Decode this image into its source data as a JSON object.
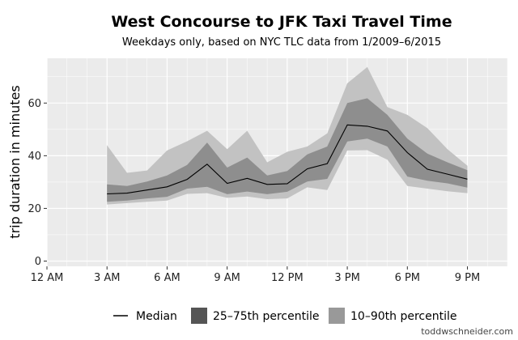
{
  "chart_data": {
    "type": "area",
    "title": "West Concourse to JFK Taxi Travel Time",
    "subtitle": "Weekdays only, based on NYC TLC data from 1/2009–6/2015",
    "xlabel": "",
    "ylabel": "trip duration in minutes",
    "x_tick_labels": [
      "12 AM",
      "3 AM",
      "6 AM",
      "9 AM",
      "12 PM",
      "3 PM",
      "6 PM",
      "9 PM"
    ],
    "x_ticks_hours": [
      0,
      3,
      6,
      9,
      12,
      15,
      18,
      21
    ],
    "xlim": [
      0,
      23
    ],
    "y_ticks": [
      0,
      20,
      40,
      60
    ],
    "ylim": [
      -2,
      77
    ],
    "grid": true,
    "legend_position": "bottom",
    "hours": [
      3,
      4,
      5,
      6,
      7,
      8,
      9,
      10,
      11,
      12,
      13,
      14,
      15,
      16,
      17,
      18,
      19,
      20,
      21
    ],
    "series": [
      {
        "name": "Median",
        "kind": "line",
        "values": [
          25.5,
          25.8,
          27,
          28.2,
          31,
          36.8,
          29.5,
          31.4,
          29.1,
          29.4,
          35,
          37,
          51.7,
          51.2,
          49.4,
          41.2,
          34.9,
          33,
          31.1
        ]
      },
      {
        "name": "25–75th percentile",
        "kind": "band",
        "lower": [
          22.5,
          23,
          23.8,
          24.4,
          27.5,
          28.2,
          25.4,
          26.4,
          25.4,
          26.3,
          30.2,
          31.2,
          45.4,
          46.5,
          43.5,
          32.1,
          30.5,
          29.5,
          27.9
        ],
        "upper": [
          29.1,
          28.5,
          30.2,
          32.5,
          36.5,
          45,
          35.5,
          39.3,
          32.5,
          34.2,
          40.5,
          43.5,
          60,
          61.8,
          55.5,
          46.5,
          40.8,
          37.5,
          34.5
        ]
      },
      {
        "name": "10–90th percentile",
        "kind": "band",
        "lower": [
          21.5,
          22,
          22.5,
          23,
          25.5,
          25.8,
          24,
          24.5,
          23.5,
          23.8,
          28,
          27,
          42,
          42.1,
          38.5,
          28.5,
          27.5,
          26.5,
          25.8
        ],
        "upper": [
          44,
          33.5,
          34.4,
          42,
          45.5,
          49.5,
          42.5,
          49.5,
          37.5,
          41.5,
          43.5,
          48.5,
          67.5,
          73.7,
          58.5,
          55.5,
          50.5,
          42.5,
          36.2
        ]
      }
    ]
  },
  "legend": {
    "median": "Median",
    "iqr": "25–75th percentile",
    "p10_90": "10–90th percentile"
  },
  "credit": "toddwschneider.com",
  "colors": {
    "panel_bg": "#ebebeb",
    "grid": "#ffffff",
    "band_outer": "#c2c2c2",
    "band_inner": "#8e8e8e",
    "line": "#000000"
  }
}
